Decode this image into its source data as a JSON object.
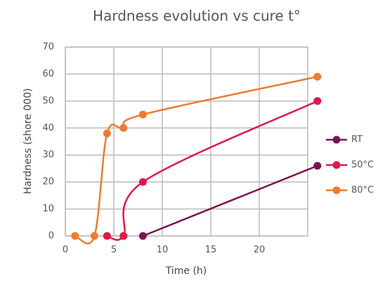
{
  "chart_data": {
    "type": "line",
    "title": "Hardness evolution vs cure t°",
    "x_label": "Time (h)",
    "y_label": "Hardness (shore 000)",
    "xlim": [
      0,
      25
    ],
    "xticks": [
      0,
      5,
      10,
      15,
      20
    ],
    "ylim": [
      0,
      70
    ],
    "yticks": [
      0,
      10,
      20,
      30,
      40,
      50,
      60,
      70
    ],
    "grid": true,
    "legend": "right",
    "series": [
      {
        "name": "RT",
        "color": "#7b1450",
        "x": [
          8,
          26
        ],
        "values": [
          0,
          26
        ]
      },
      {
        "name": "50°C",
        "color": "#e0174a",
        "x": [
          4.3,
          6,
          8,
          26
        ],
        "values": [
          0,
          0,
          20,
          50
        ]
      },
      {
        "name": "80°C",
        "color": "#ee7b30",
        "x": [
          1,
          3,
          4.3,
          6,
          8,
          26
        ],
        "values": [
          0,
          0,
          38,
          40,
          45,
          59
        ]
      }
    ]
  }
}
